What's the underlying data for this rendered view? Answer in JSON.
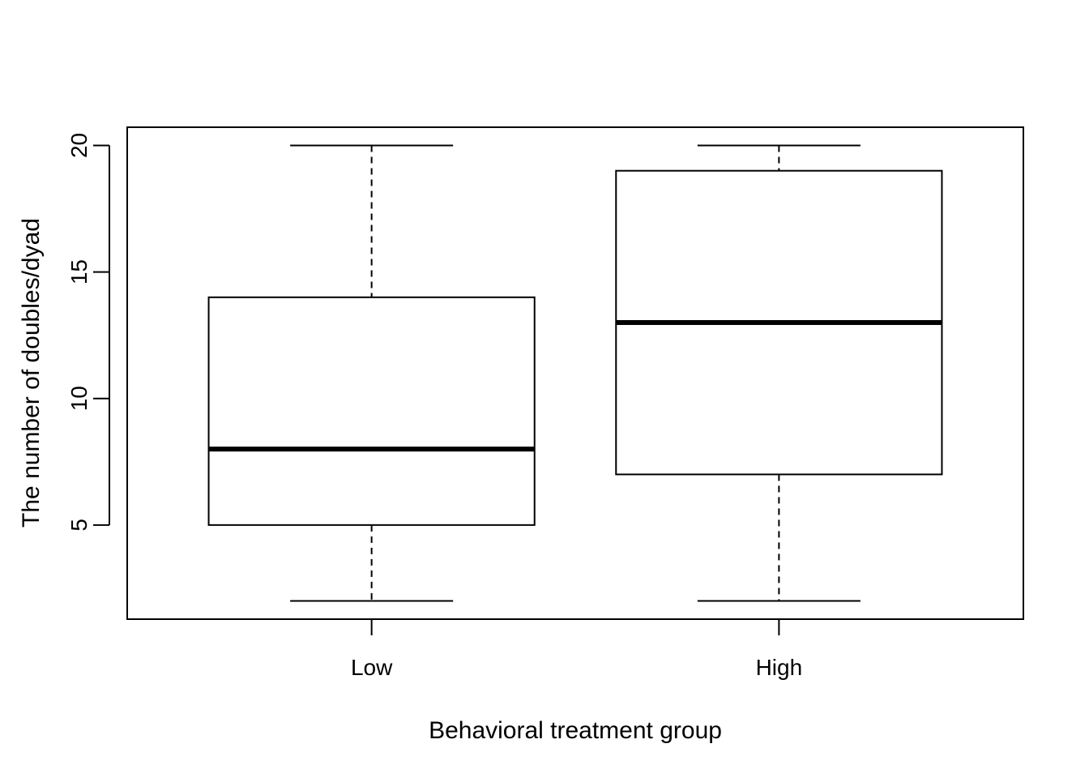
{
  "chart_data": {
    "type": "boxplot",
    "title": "",
    "xlabel": "Behavioral treatment group",
    "ylabel": "The number of doubles/dyad",
    "categories": [
      "Low",
      "High"
    ],
    "boxes": [
      {
        "category": "Low",
        "min": 2,
        "q1": 5,
        "median": 8,
        "q3": 14,
        "max": 20
      },
      {
        "category": "High",
        "min": 2,
        "q1": 7,
        "median": 13,
        "q3": 19,
        "max": 20
      }
    ],
    "yticks": [
      5,
      10,
      15,
      20
    ],
    "ytick_labels": [
      "5",
      "10",
      "15",
      "20"
    ],
    "ylim": [
      1.28,
      20.72
    ],
    "grid": false,
    "colors": {
      "box_fill": "#ffffff",
      "line": "#000000"
    }
  }
}
